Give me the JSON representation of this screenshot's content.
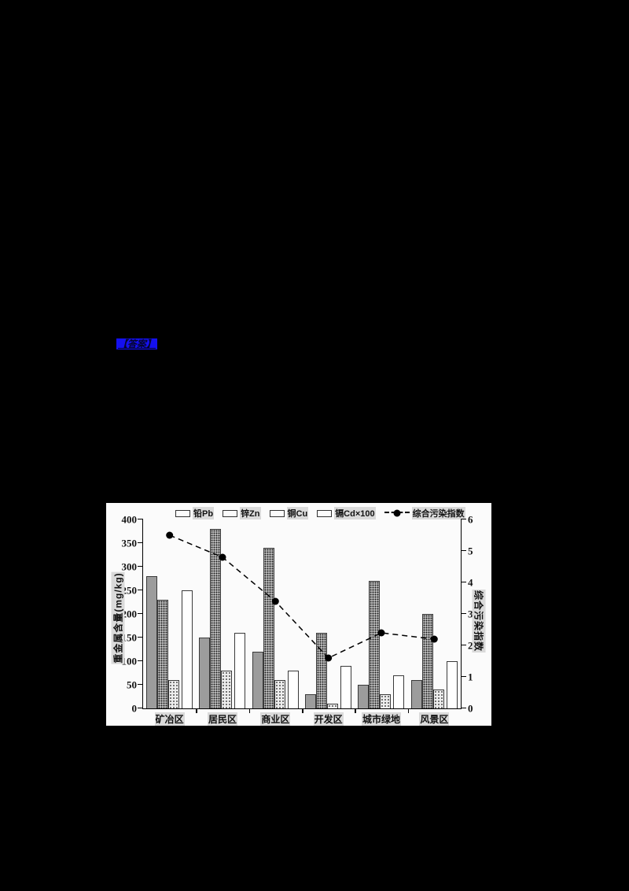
{
  "page": {
    "background": "#000000"
  },
  "answer_link": {
    "text": "【答案】",
    "highlight_color": "#1410f0"
  },
  "chart_data": {
    "type": "bar",
    "title": "",
    "categories": [
      "矿冶区",
      "居民区",
      "商业区",
      "开发区",
      "城市绿地",
      "风景区"
    ],
    "series": [
      {
        "name": "铅Pb",
        "values": [
          280,
          150,
          120,
          30,
          50,
          60
        ]
      },
      {
        "name": "锌Zn",
        "values": [
          230,
          380,
          340,
          160,
          270,
          200
        ]
      },
      {
        "name": "铜Cu",
        "values": [
          60,
          80,
          60,
          10,
          30,
          40
        ]
      },
      {
        "name": "镉Cd×100",
        "values": [
          250,
          160,
          80,
          90,
          70,
          100
        ]
      }
    ],
    "line_series": {
      "name": "综合污染指数",
      "values": [
        5.5,
        4.8,
        3.4,
        1.6,
        2.4,
        2.2
      ],
      "axis": "right",
      "style": "black-dashed-filled-circle"
    },
    "bar_styles": [
      "solid-gray",
      "dense-dot-hatch",
      "light-dot-hatch",
      "white-outline"
    ],
    "ylabel_left": "重金属含量(mg/kg)",
    "ylabel_right": "综合污染指数",
    "ylim_left": [
      0,
      400
    ],
    "ytick_step_left": 50,
    "ylim_right": [
      0,
      6
    ],
    "ytick_step_right": 1,
    "legend_position": "top",
    "grid": false
  }
}
